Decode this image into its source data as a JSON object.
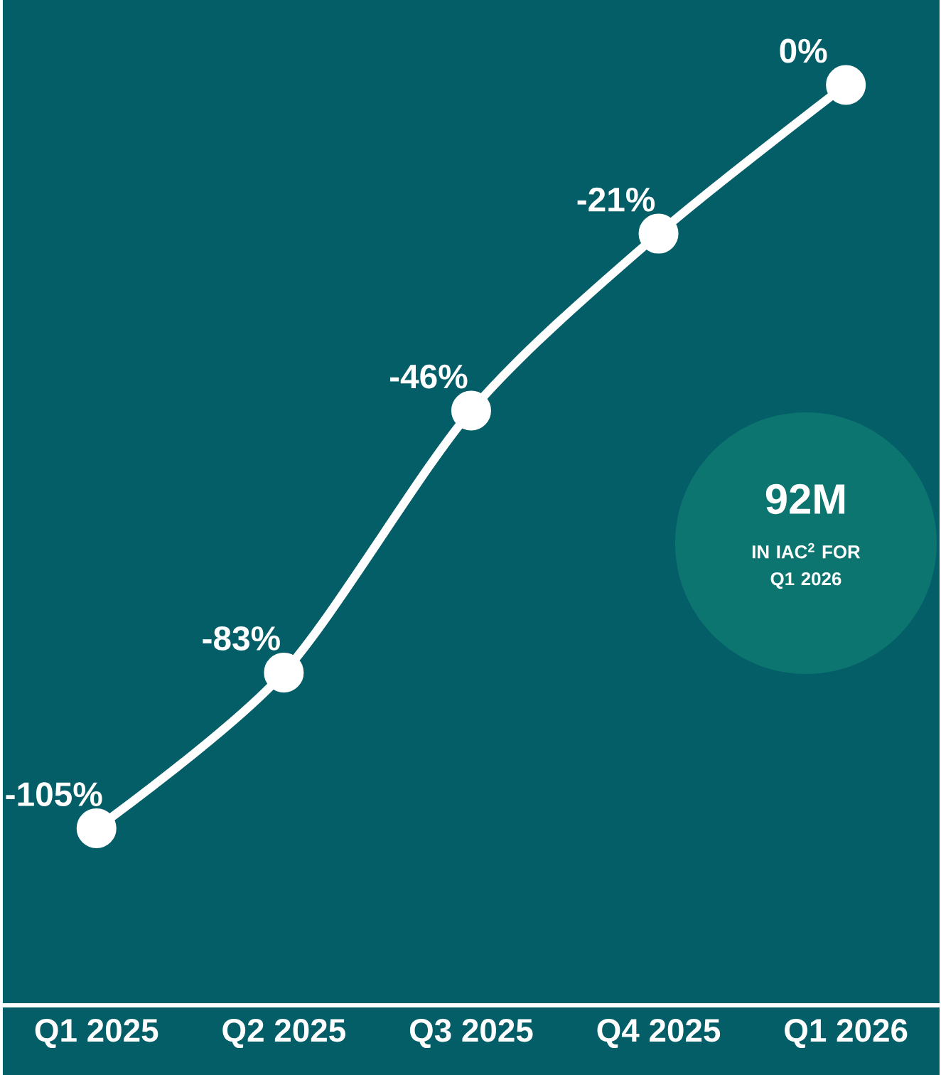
{
  "chart_data": {
    "type": "line",
    "categories": [
      "Q1 2025",
      "Q2 2025",
      "Q3 2025",
      "Q4 2025",
      "Q1 2026"
    ],
    "series": [
      {
        "color": "#ffffff",
        "values": [
          -105,
          -83,
          -46,
          -21,
          0
        ],
        "value_labels": [
          "-105%",
          "-83%",
          "-46%",
          "-21%",
          "0%"
        ]
      }
    ],
    "ylim": [
      -130,
      12
    ],
    "marker": "circle",
    "line_style": "solid",
    "annotations": [
      "92M",
      "IN IAC$^{2}$ FOR Q1 2026"
    ]
  }
}
